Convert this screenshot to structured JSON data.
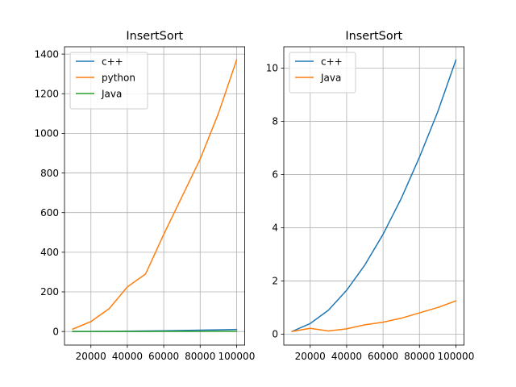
{
  "chart_data": [
    {
      "type": "line",
      "title": "InsertSort",
      "xlabel": "",
      "ylabel": "",
      "grid": true,
      "legend": "upper-left",
      "xlim": [
        5500,
        104500
      ],
      "ylim": [
        -68.5,
        1437
      ],
      "xticks": [
        20000,
        40000,
        60000,
        80000,
        100000
      ],
      "xtick_labels": [
        "20000",
        "40000",
        "60000",
        "80000",
        "100000"
      ],
      "yticks": [
        0,
        200,
        400,
        600,
        800,
        1000,
        1200,
        1400
      ],
      "ytick_labels": [
        "0",
        "200",
        "400",
        "600",
        "800",
        "1000",
        "1200",
        "1400"
      ],
      "x": [
        10000,
        20000,
        30000,
        40000,
        50000,
        60000,
        70000,
        80000,
        90000,
        100000
      ],
      "series": [
        {
          "name": "c++",
          "color": "#1f77b4",
          "values": [
            0.1,
            0.4,
            0.9,
            1.65,
            2.6,
            3.75,
            5.1,
            6.65,
            8.35,
            10.3
          ]
        },
        {
          "name": "python",
          "color": "#ff7f0e",
          "values": [
            12,
            50,
            115,
            225,
            290,
            490,
            680,
            870,
            1100,
            1370
          ]
        },
        {
          "name": "Java",
          "color": "#2ca02c",
          "values": [
            0.05,
            0.2,
            0.1,
            0.2,
            0.35,
            0.45,
            0.6,
            0.8,
            1.0,
            1.25
          ]
        }
      ]
    },
    {
      "type": "line",
      "title": "InsertSort",
      "xlabel": "",
      "ylabel": "",
      "grid": true,
      "legend": "upper-left",
      "xlim": [
        5500,
        104500
      ],
      "ylim": [
        -0.41,
        10.8
      ],
      "xticks": [
        20000,
        40000,
        60000,
        80000,
        100000
      ],
      "xtick_labels": [
        "20000",
        "40000",
        "60000",
        "80000",
        "100000"
      ],
      "yticks": [
        0,
        2,
        4,
        6,
        8,
        10
      ],
      "ytick_labels": [
        "0",
        "2",
        "4",
        "6",
        "8",
        "10"
      ],
      "x": [
        10000,
        20000,
        30000,
        40000,
        50000,
        60000,
        70000,
        80000,
        90000,
        100000
      ],
      "series": [
        {
          "name": "c++",
          "color": "#1f77b4",
          "values": [
            0.1,
            0.4,
            0.9,
            1.65,
            2.6,
            3.75,
            5.1,
            6.65,
            8.35,
            10.3
          ]
        },
        {
          "name": "Java",
          "color": "#ff7f0e",
          "values": [
            0.1,
            0.22,
            0.12,
            0.2,
            0.35,
            0.45,
            0.6,
            0.8,
            1.0,
            1.25
          ]
        }
      ]
    }
  ]
}
